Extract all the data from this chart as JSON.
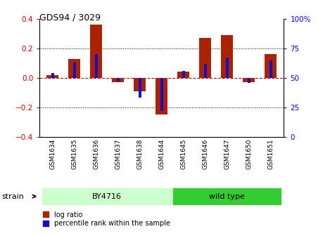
{
  "title": "GDS94 / 3029",
  "samples": [
    "GSM1634",
    "GSM1635",
    "GSM1636",
    "GSM1637",
    "GSM1638",
    "GSM1644",
    "GSM1645",
    "GSM1646",
    "GSM1647",
    "GSM1650",
    "GSM1651"
  ],
  "log_ratio": [
    0.02,
    0.13,
    0.36,
    -0.03,
    -0.09,
    -0.25,
    0.04,
    0.27,
    0.29,
    -0.03,
    0.16
  ],
  "percentile_rank": [
    54,
    63,
    70,
    47,
    33,
    22,
    56,
    62,
    67,
    46,
    65
  ],
  "ylim_left": [
    -0.4,
    0.4
  ],
  "ylim_right": [
    0,
    100
  ],
  "yticks_left": [
    -0.4,
    -0.2,
    0.0,
    0.2,
    0.4
  ],
  "yticks_right": [
    0,
    25,
    50,
    75,
    100
  ],
  "hline_y": 0,
  "dotted_lines": [
    -0.2,
    0.2
  ],
  "bar_color_red": "#aa2200",
  "bar_color_blue": "#1111cc",
  "dashed_color": "#cc0000",
  "groups": [
    {
      "label": "BY4716",
      "start": 0,
      "end": 5,
      "color": "#ccffcc"
    },
    {
      "label": "wild type",
      "start": 6,
      "end": 10,
      "color": "#33cc33"
    }
  ],
  "strain_label": "strain",
  "legend_red": "log ratio",
  "legend_blue": "percentile rank within the sample",
  "red_bar_width": 0.55,
  "blue_bar_width": 0.12
}
